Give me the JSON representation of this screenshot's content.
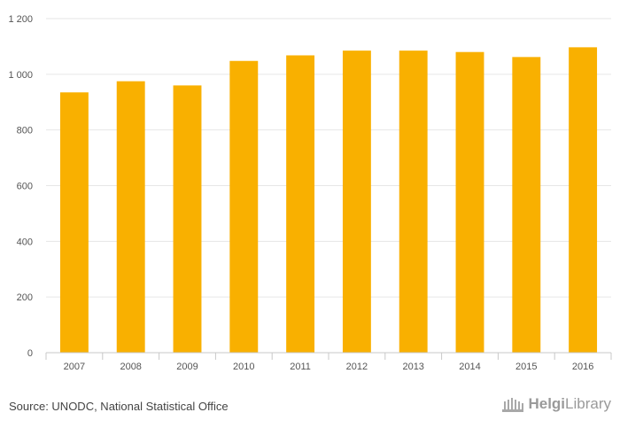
{
  "chart_data": {
    "type": "bar",
    "categories": [
      "2007",
      "2008",
      "2009",
      "2010",
      "2011",
      "2012",
      "2013",
      "2014",
      "2015",
      "2016"
    ],
    "values": [
      935,
      975,
      960,
      1048,
      1068,
      1085,
      1085,
      1080,
      1062,
      1097
    ],
    "ylim": [
      0,
      1200
    ],
    "yticks": [
      0,
      200,
      400,
      600,
      800,
      1000,
      1200
    ],
    "ytick_labels": [
      "0",
      "200",
      "400",
      "600",
      "800",
      "1 000",
      "1 200"
    ],
    "bar_color": "#F9B000",
    "grid": true,
    "title": "",
    "xlabel": "",
    "ylabel": ""
  },
  "source_text": "Source: UNODC, National Statistical Office",
  "logo": {
    "part1": "Helgi",
    "part2": "Library"
  }
}
